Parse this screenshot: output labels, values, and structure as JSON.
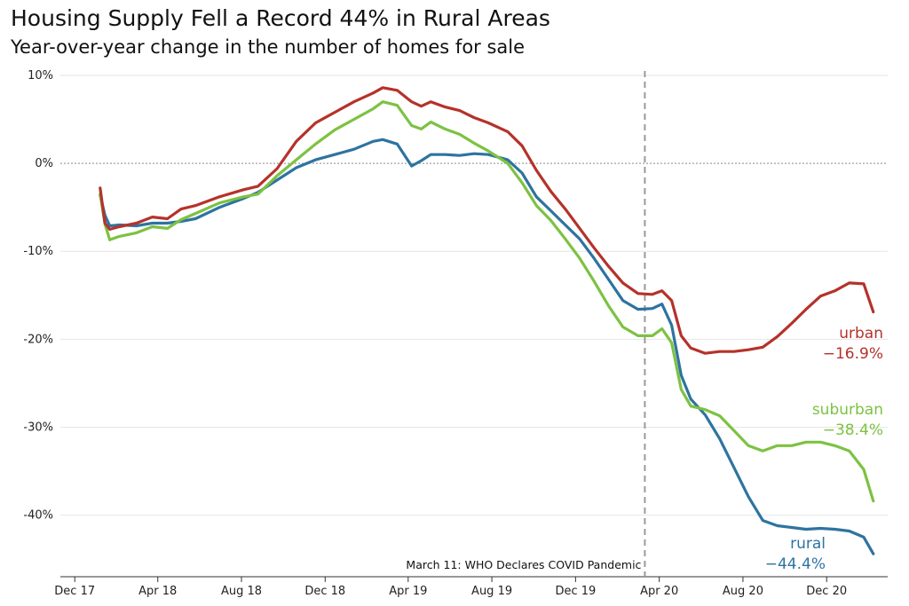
{
  "chart_data": {
    "type": "line",
    "title": "Housing Supply Fell a Record 44% in Rural Areas",
    "subtitle": "Year-over-year change in the number of homes for sale",
    "x_ticks": [
      "Dec 17",
      "Apr 18",
      "Aug 18",
      "Dec 18",
      "Apr 19",
      "Aug 19",
      "Dec 19",
      "Apr 20",
      "Aug 20",
      "Dec 20"
    ],
    "y_ticks": [
      "10%",
      "0%",
      "-10%",
      "-20%",
      "-30%",
      "-40%"
    ],
    "ylim": [
      -47,
      10.5
    ],
    "xlim": [
      "2017-11-10",
      "2021-02-28"
    ],
    "zero_line": true,
    "annotation": {
      "date": "2020-03-11",
      "text": "March 11: WHO Declares COVID Pandemic"
    },
    "series": [
      {
        "name": "urban",
        "color": "#b5322a",
        "end_value_label": "−16.9%",
        "points": [
          [
            "2018-01-07",
            -2.8
          ],
          [
            "2018-01-14",
            -6.8
          ],
          [
            "2018-01-21",
            -7.5
          ],
          [
            "2018-02-04",
            -7.2
          ],
          [
            "2018-03-01",
            -6.8
          ],
          [
            "2018-03-24",
            -6.1
          ],
          [
            "2018-04-15",
            -6.3
          ],
          [
            "2018-05-05",
            -5.2
          ],
          [
            "2018-05-26",
            -4.8
          ],
          [
            "2018-06-30",
            -3.8
          ],
          [
            "2018-08-04",
            -3.0
          ],
          [
            "2018-08-25",
            -2.6
          ],
          [
            "2018-09-22",
            -0.6
          ],
          [
            "2018-10-20",
            2.5
          ],
          [
            "2018-11-17",
            4.6
          ],
          [
            "2018-12-15",
            5.8
          ],
          [
            "2019-01-12",
            7.0
          ],
          [
            "2019-02-09",
            8.0
          ],
          [
            "2019-02-23",
            8.6
          ],
          [
            "2019-03-16",
            8.3
          ],
          [
            "2019-04-06",
            7.0
          ],
          [
            "2019-04-20",
            6.5
          ],
          [
            "2019-05-04",
            7.0
          ],
          [
            "2019-05-25",
            6.4
          ],
          [
            "2019-06-15",
            6.0
          ],
          [
            "2019-07-06",
            5.2
          ],
          [
            "2019-07-27",
            4.6
          ],
          [
            "2019-08-24",
            3.6
          ],
          [
            "2019-09-14",
            2.0
          ],
          [
            "2019-10-05",
            -0.8
          ],
          [
            "2019-10-26",
            -3.2
          ],
          [
            "2019-11-16",
            -5.2
          ],
          [
            "2019-12-07",
            -7.4
          ],
          [
            "2019-12-28",
            -9.6
          ],
          [
            "2020-01-18",
            -11.7
          ],
          [
            "2020-02-08",
            -13.6
          ],
          [
            "2020-03-01",
            -14.8
          ],
          [
            "2020-03-22",
            -14.9
          ],
          [
            "2020-04-05",
            -14.5
          ],
          [
            "2020-04-19",
            -15.6
          ],
          [
            "2020-05-03",
            -19.6
          ],
          [
            "2020-05-17",
            -21.0
          ],
          [
            "2020-06-07",
            -21.6
          ],
          [
            "2020-06-28",
            -21.4
          ],
          [
            "2020-07-19",
            -21.4
          ],
          [
            "2020-08-09",
            -21.2
          ],
          [
            "2020-08-30",
            -20.9
          ],
          [
            "2020-09-20",
            -19.7
          ],
          [
            "2020-10-11",
            -18.2
          ],
          [
            "2020-11-01",
            -16.6
          ],
          [
            "2020-11-22",
            -15.1
          ],
          [
            "2020-12-13",
            -14.5
          ],
          [
            "2021-01-03",
            -13.6
          ],
          [
            "2021-01-24",
            -13.7
          ],
          [
            "2021-02-07",
            -16.9
          ]
        ]
      },
      {
        "name": "suburban",
        "color": "#7cc242",
        "end_value_label": "−38.4%",
        "points": [
          [
            "2018-01-07",
            -3.5
          ],
          [
            "2018-01-14",
            -6.9
          ],
          [
            "2018-01-21",
            -8.7
          ],
          [
            "2018-02-04",
            -8.3
          ],
          [
            "2018-03-01",
            -7.9
          ],
          [
            "2018-03-24",
            -7.2
          ],
          [
            "2018-04-15",
            -7.4
          ],
          [
            "2018-05-05",
            -6.4
          ],
          [
            "2018-05-26",
            -5.7
          ],
          [
            "2018-06-30",
            -4.5
          ],
          [
            "2018-08-04",
            -3.8
          ],
          [
            "2018-08-25",
            -3.5
          ],
          [
            "2018-09-22",
            -1.4
          ],
          [
            "2018-10-20",
            0.4
          ],
          [
            "2018-11-17",
            2.2
          ],
          [
            "2018-12-15",
            3.8
          ],
          [
            "2019-01-12",
            5.0
          ],
          [
            "2019-02-09",
            6.2
          ],
          [
            "2019-02-23",
            7.0
          ],
          [
            "2019-03-16",
            6.6
          ],
          [
            "2019-04-06",
            4.3
          ],
          [
            "2019-04-20",
            3.9
          ],
          [
            "2019-05-04",
            4.7
          ],
          [
            "2019-05-25",
            3.9
          ],
          [
            "2019-06-15",
            3.3
          ],
          [
            "2019-07-06",
            2.3
          ],
          [
            "2019-07-27",
            1.4
          ],
          [
            "2019-08-24",
            0.0
          ],
          [
            "2019-09-14",
            -2.2
          ],
          [
            "2019-10-05",
            -4.8
          ],
          [
            "2019-10-26",
            -6.5
          ],
          [
            "2019-11-16",
            -8.6
          ],
          [
            "2019-12-07",
            -10.8
          ],
          [
            "2019-12-28",
            -13.4
          ],
          [
            "2020-01-18",
            -16.2
          ],
          [
            "2020-02-08",
            -18.6
          ],
          [
            "2020-03-01",
            -19.6
          ],
          [
            "2020-03-22",
            -19.6
          ],
          [
            "2020-04-05",
            -18.8
          ],
          [
            "2020-04-19",
            -20.4
          ],
          [
            "2020-05-03",
            -25.7
          ],
          [
            "2020-05-17",
            -27.6
          ],
          [
            "2020-06-07",
            -28.0
          ],
          [
            "2020-06-28",
            -28.7
          ],
          [
            "2020-07-19",
            -30.4
          ],
          [
            "2020-08-09",
            -32.1
          ],
          [
            "2020-08-30",
            -32.7
          ],
          [
            "2020-09-20",
            -32.1
          ],
          [
            "2020-10-11",
            -32.1
          ],
          [
            "2020-11-01",
            -31.7
          ],
          [
            "2020-11-22",
            -31.7
          ],
          [
            "2020-12-13",
            -32.1
          ],
          [
            "2021-01-03",
            -32.7
          ],
          [
            "2021-01-24",
            -34.8
          ],
          [
            "2021-02-07",
            -38.4
          ]
        ]
      },
      {
        "name": "rural",
        "color": "#2e73a0",
        "end_value_label": "−44.4%",
        "points": [
          [
            "2018-01-07",
            -3.6
          ],
          [
            "2018-01-14",
            -5.9
          ],
          [
            "2018-01-21",
            -7.1
          ],
          [
            "2018-02-04",
            -7.0
          ],
          [
            "2018-03-01",
            -7.1
          ],
          [
            "2018-03-24",
            -6.8
          ],
          [
            "2018-04-15",
            -6.8
          ],
          [
            "2018-05-05",
            -6.6
          ],
          [
            "2018-05-26",
            -6.3
          ],
          [
            "2018-06-30",
            -5.0
          ],
          [
            "2018-08-04",
            -4.0
          ],
          [
            "2018-08-25",
            -3.3
          ],
          [
            "2018-09-22",
            -1.9
          ],
          [
            "2018-10-20",
            -0.5
          ],
          [
            "2018-11-17",
            0.4
          ],
          [
            "2018-12-15",
            1.0
          ],
          [
            "2019-01-12",
            1.6
          ],
          [
            "2019-02-09",
            2.5
          ],
          [
            "2019-02-23",
            2.7
          ],
          [
            "2019-03-16",
            2.2
          ],
          [
            "2019-04-06",
            -0.3
          ],
          [
            "2019-04-20",
            0.3
          ],
          [
            "2019-05-04",
            1.0
          ],
          [
            "2019-05-25",
            1.0
          ],
          [
            "2019-06-15",
            0.9
          ],
          [
            "2019-07-06",
            1.1
          ],
          [
            "2019-07-27",
            1.0
          ],
          [
            "2019-08-24",
            0.4
          ],
          [
            "2019-09-14",
            -1.1
          ],
          [
            "2019-10-05",
            -3.8
          ],
          [
            "2019-10-26",
            -5.4
          ],
          [
            "2019-11-16",
            -7.0
          ],
          [
            "2019-12-07",
            -8.6
          ],
          [
            "2019-12-28",
            -10.8
          ],
          [
            "2020-01-18",
            -13.2
          ],
          [
            "2020-02-08",
            -15.6
          ],
          [
            "2020-03-01",
            -16.6
          ],
          [
            "2020-03-22",
            -16.5
          ],
          [
            "2020-04-05",
            -16.0
          ],
          [
            "2020-04-19",
            -18.4
          ],
          [
            "2020-05-03",
            -24.1
          ],
          [
            "2020-05-17",
            -26.8
          ],
          [
            "2020-06-07",
            -28.6
          ],
          [
            "2020-06-28",
            -31.3
          ],
          [
            "2020-07-19",
            -34.6
          ],
          [
            "2020-08-09",
            -37.9
          ],
          [
            "2020-08-30",
            -40.6
          ],
          [
            "2020-09-20",
            -41.2
          ],
          [
            "2020-10-11",
            -41.4
          ],
          [
            "2020-11-01",
            -41.6
          ],
          [
            "2020-11-22",
            -41.5
          ],
          [
            "2020-12-13",
            -41.6
          ],
          [
            "2021-01-03",
            -41.8
          ],
          [
            "2021-01-24",
            -42.5
          ],
          [
            "2021-02-07",
            -44.4
          ]
        ]
      }
    ]
  }
}
